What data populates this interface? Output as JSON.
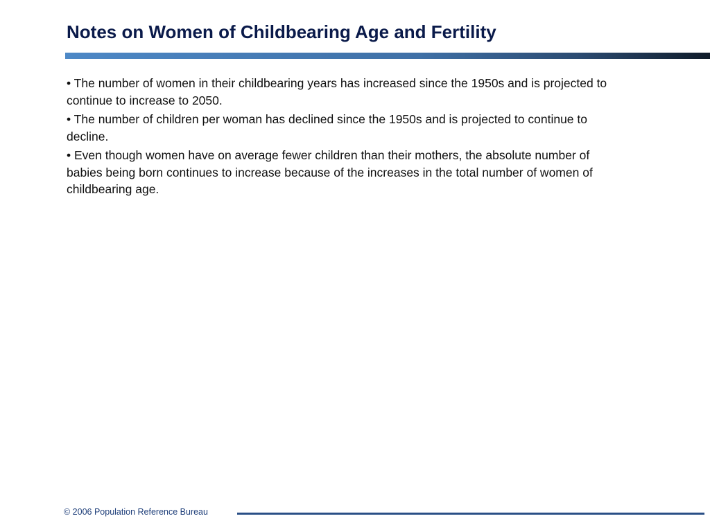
{
  "slide": {
    "title": "Notes on Women of Childbearing Age and Fertility",
    "bullets": [
      "• The number of women in their childbearing years has increased since the 1950s and is projected to continue to increase to 2050.",
      "• The number of children per woman has declined since the 1950s and is projected to continue to decline.",
      "• Even though women have on average fewer children than their mothers, the absolute number of babies being born continues to increase because of the increases in the total number of women of childbearing age."
    ],
    "footer": "© 2006 Population Reference Bureau"
  },
  "colors": {
    "title": "#0a1a4a",
    "rule_start": "#4d88c6",
    "rule_end": "#0f1b29",
    "footer": "#1f3f7a",
    "footer_rule": "#2a4f86"
  }
}
